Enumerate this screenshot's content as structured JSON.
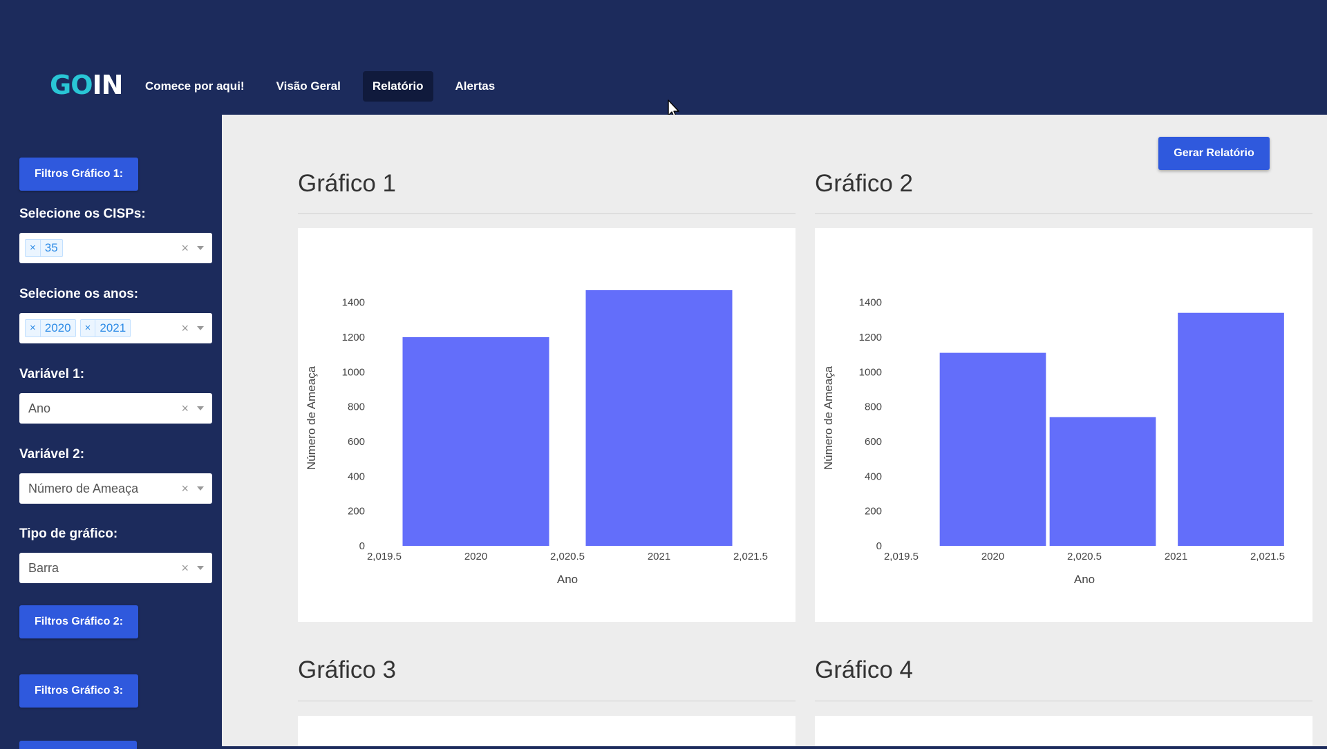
{
  "header": {
    "logo": {
      "part1": "GO",
      "part2": "IN"
    },
    "nav": [
      {
        "label": "Comece por aqui!",
        "active": false
      },
      {
        "label": "Visão Geral",
        "active": false
      },
      {
        "label": "Relatório",
        "active": true
      },
      {
        "label": "Alertas",
        "active": false
      }
    ]
  },
  "sidebar": {
    "filtros1_button": "Filtros Gráfico 1:",
    "cisps": {
      "label": "Selecione os CISPs:",
      "values": [
        "35"
      ]
    },
    "anos": {
      "label": "Selecione os anos:",
      "values": [
        "2020",
        "2021"
      ]
    },
    "var1": {
      "label": "Variável 1:",
      "value": "Ano"
    },
    "var2": {
      "label": "Variável 2:",
      "value": "Número de Ameaça"
    },
    "tipo": {
      "label": "Tipo de gráfico:",
      "value": "Barra"
    },
    "filtros2_button": "Filtros Gráfico 2:",
    "filtros3_button": "Filtros Gráfico 3:",
    "clear_glyph": "×",
    "chip_remove_glyph": "×"
  },
  "main": {
    "generate_button": "Gerar Relatório",
    "cards": [
      {
        "title": "Gráfico 1"
      },
      {
        "title": "Gráfico 2"
      },
      {
        "title": "Gráfico 3"
      },
      {
        "title": "Gráfico 4"
      }
    ]
  },
  "colors": {
    "bar": "#636efa",
    "primary_button": "#2f59dd",
    "nav_bg": "#1c2b5c",
    "logo_accent": "#29c6d6"
  },
  "chart_data": [
    {
      "type": "bar",
      "title": "",
      "xlabel": "Ano",
      "ylabel": "Número de Ameaça",
      "x": [
        2020,
        2021
      ],
      "values": [
        1200,
        1470
      ],
      "bar_width": 0.8,
      "xlim": [
        2019.5,
        2021.5
      ],
      "ylim": [
        0,
        1470
      ],
      "xticks": [
        "2,019.5",
        "2020",
        "2,020.5",
        "2021",
        "2,021.5"
      ],
      "yticks": [
        "0",
        "200",
        "400",
        "600",
        "800",
        "1000",
        "1200",
        "1400"
      ],
      "grid": false,
      "color": "#636efa"
    },
    {
      "type": "bar",
      "title": "",
      "xlabel": "Ano",
      "ylabel": "Número de Ameaça",
      "x": [
        2020,
        2020.6,
        2021.3
      ],
      "values": [
        1110,
        740,
        1340
      ],
      "bar_width": 0.58,
      "xlim": [
        2019.5,
        2021.5
      ],
      "ylim": [
        0,
        1470
      ],
      "xticks": [
        "2,019.5",
        "2020",
        "2,020.5",
        "2021",
        "2,021.5"
      ],
      "yticks": [
        "0",
        "200",
        "400",
        "600",
        "800",
        "1000",
        "1200",
        "1400"
      ],
      "grid": false,
      "color": "#636efa"
    }
  ]
}
